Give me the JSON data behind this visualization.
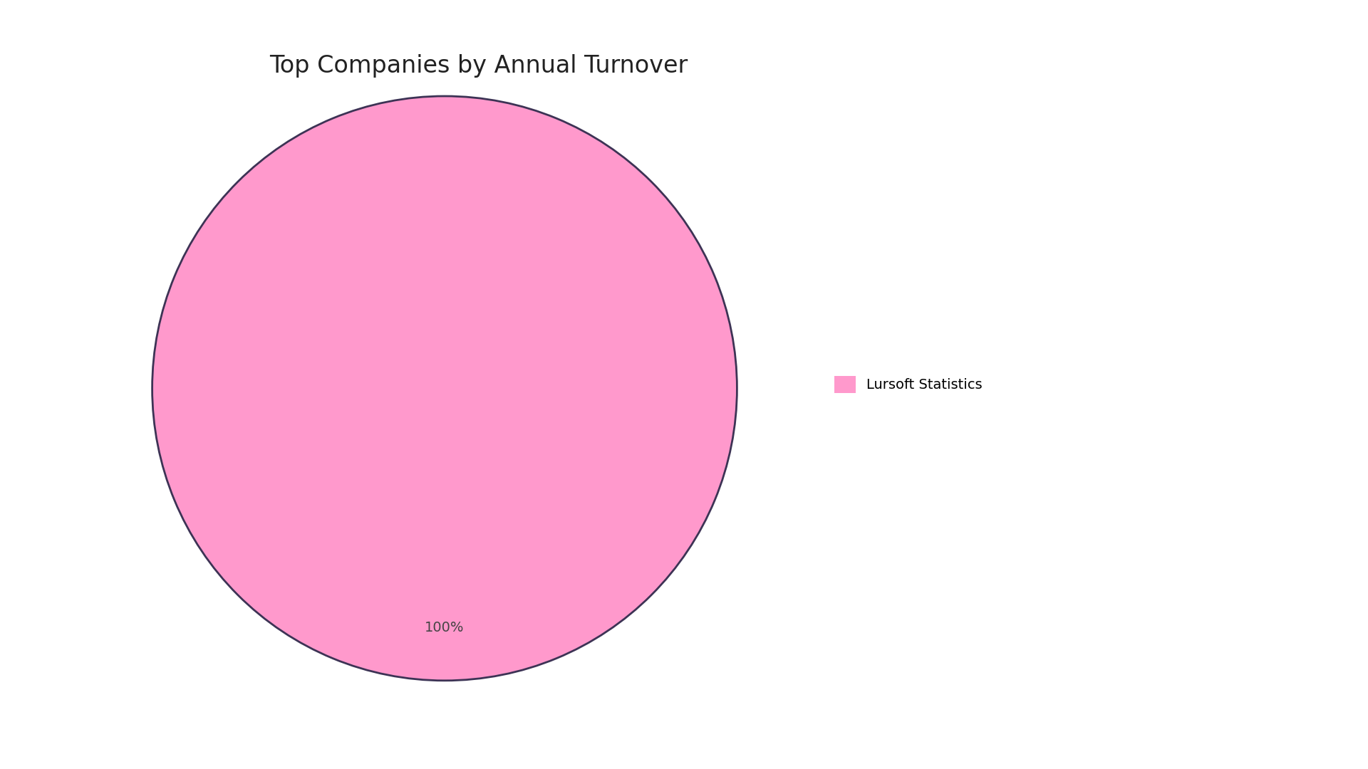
{
  "title": "Top Companies by Annual Turnover",
  "slices": [
    100
  ],
  "colors": [
    "#ff99cc"
  ],
  "wedge_edge_color": "#3d3355",
  "wedge_edge_width": 2.0,
  "autopct_fontsize": 14,
  "autopct_color": "#444444",
  "legend_label": "Lursoft Statistics",
  "legend_color": "#ff99cc",
  "legend_fontsize": 14,
  "title_fontsize": 24,
  "title_color": "#222222",
  "background_color": "#ffffff",
  "pctdistance": 0.82
}
